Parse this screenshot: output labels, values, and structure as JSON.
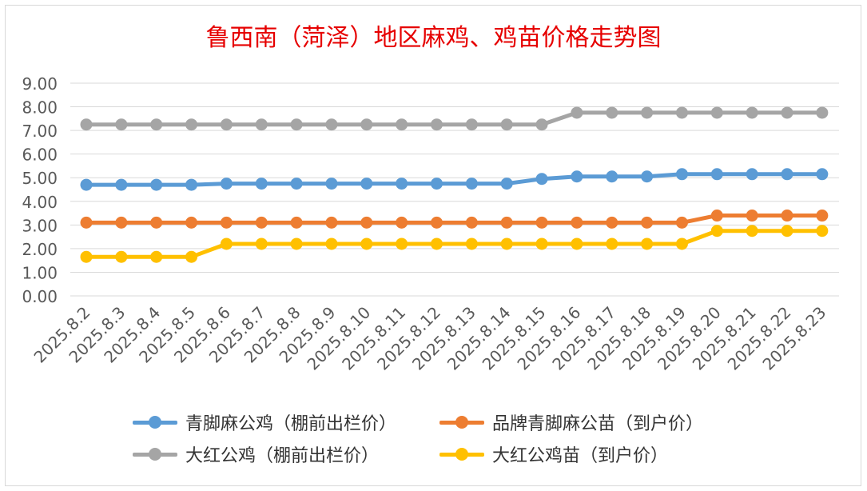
{
  "chart_data": {
    "type": "line",
    "title": "鲁西南（菏泽）地区麻鸡、鸡苗价格走势图",
    "categories": [
      "2025.8.2",
      "2025.8.3",
      "2025.8.4",
      "2025.8.5",
      "2025.8.6",
      "2025.8.7",
      "2025.8.8",
      "2025.8.9",
      "2025.8.10",
      "2025.8.11",
      "2025.8.12",
      "2025.8.13",
      "2025.8.14",
      "2025.8.15",
      "2025.8.16",
      "2025.8.17",
      "2025.8.18",
      "2025.8.19",
      "2025.8.20",
      "2025.8.21",
      "2025.8.22",
      "2025.8.23"
    ],
    "y_ticks": [
      "0.00",
      "1.00",
      "2.00",
      "3.00",
      "4.00",
      "5.00",
      "6.00",
      "7.00",
      "8.00",
      "9.00"
    ],
    "ylim": [
      0,
      9
    ],
    "grid": true,
    "legend_position": "bottom",
    "series": [
      {
        "name": "青脚麻公鸡（棚前出栏价）",
        "color": "#5b9bd5",
        "values": [
          4.7,
          4.7,
          4.7,
          4.7,
          4.75,
          4.75,
          4.75,
          4.75,
          4.75,
          4.75,
          4.75,
          4.75,
          4.75,
          4.95,
          5.05,
          5.05,
          5.05,
          5.15,
          5.15,
          5.15,
          5.15,
          5.15
        ]
      },
      {
        "name": "品牌青脚麻公苗（到户价）",
        "color": "#ed7d31",
        "values": [
          3.1,
          3.1,
          3.1,
          3.1,
          3.1,
          3.1,
          3.1,
          3.1,
          3.1,
          3.1,
          3.1,
          3.1,
          3.1,
          3.1,
          3.1,
          3.1,
          3.1,
          3.1,
          3.4,
          3.4,
          3.4,
          3.4
        ]
      },
      {
        "name": "大红公鸡（棚前出栏价）",
        "color": "#a5a5a5",
        "values": [
          7.25,
          7.25,
          7.25,
          7.25,
          7.25,
          7.25,
          7.25,
          7.25,
          7.25,
          7.25,
          7.25,
          7.25,
          7.25,
          7.25,
          7.75,
          7.75,
          7.75,
          7.75,
          7.75,
          7.75,
          7.75,
          7.75
        ]
      },
      {
        "name": "大红公鸡苗（到户价）",
        "color": "#ffc000",
        "values": [
          1.65,
          1.65,
          1.65,
          1.65,
          2.2,
          2.2,
          2.2,
          2.2,
          2.2,
          2.2,
          2.2,
          2.2,
          2.2,
          2.2,
          2.2,
          2.2,
          2.2,
          2.2,
          2.75,
          2.75,
          2.75,
          2.75
        ]
      }
    ]
  }
}
